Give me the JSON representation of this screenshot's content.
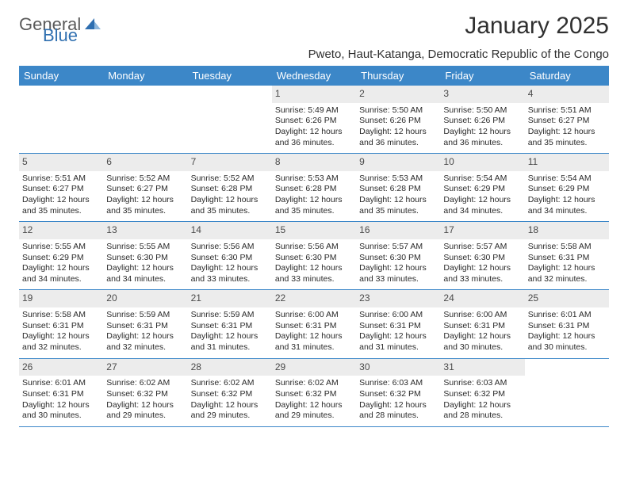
{
  "brand": {
    "part1": "General",
    "part2": "Blue"
  },
  "title": "January 2025",
  "subtitle": "Pweto, Haut-Katanga, Democratic Republic of the Congo",
  "colors": {
    "header_bg": "#3c87c8",
    "header_fg": "#ffffff",
    "daynum_bg": "#ececec",
    "rule": "#3c87c8",
    "logo_gray": "#5a5a5a",
    "logo_blue": "#2f6fb0"
  },
  "dow": [
    "Sunday",
    "Monday",
    "Tuesday",
    "Wednesday",
    "Thursday",
    "Friday",
    "Saturday"
  ],
  "weeks": [
    [
      null,
      null,
      null,
      {
        "n": "1",
        "sr": "5:49 AM",
        "ss": "6:26 PM",
        "dl": "12 hours and 36 minutes."
      },
      {
        "n": "2",
        "sr": "5:50 AM",
        "ss": "6:26 PM",
        "dl": "12 hours and 36 minutes."
      },
      {
        "n": "3",
        "sr": "5:50 AM",
        "ss": "6:26 PM",
        "dl": "12 hours and 36 minutes."
      },
      {
        "n": "4",
        "sr": "5:51 AM",
        "ss": "6:27 PM",
        "dl": "12 hours and 35 minutes."
      }
    ],
    [
      {
        "n": "5",
        "sr": "5:51 AM",
        "ss": "6:27 PM",
        "dl": "12 hours and 35 minutes."
      },
      {
        "n": "6",
        "sr": "5:52 AM",
        "ss": "6:27 PM",
        "dl": "12 hours and 35 minutes."
      },
      {
        "n": "7",
        "sr": "5:52 AM",
        "ss": "6:28 PM",
        "dl": "12 hours and 35 minutes."
      },
      {
        "n": "8",
        "sr": "5:53 AM",
        "ss": "6:28 PM",
        "dl": "12 hours and 35 minutes."
      },
      {
        "n": "9",
        "sr": "5:53 AM",
        "ss": "6:28 PM",
        "dl": "12 hours and 35 minutes."
      },
      {
        "n": "10",
        "sr": "5:54 AM",
        "ss": "6:29 PM",
        "dl": "12 hours and 34 minutes."
      },
      {
        "n": "11",
        "sr": "5:54 AM",
        "ss": "6:29 PM",
        "dl": "12 hours and 34 minutes."
      }
    ],
    [
      {
        "n": "12",
        "sr": "5:55 AM",
        "ss": "6:29 PM",
        "dl": "12 hours and 34 minutes."
      },
      {
        "n": "13",
        "sr": "5:55 AM",
        "ss": "6:30 PM",
        "dl": "12 hours and 34 minutes."
      },
      {
        "n": "14",
        "sr": "5:56 AM",
        "ss": "6:30 PM",
        "dl": "12 hours and 33 minutes."
      },
      {
        "n": "15",
        "sr": "5:56 AM",
        "ss": "6:30 PM",
        "dl": "12 hours and 33 minutes."
      },
      {
        "n": "16",
        "sr": "5:57 AM",
        "ss": "6:30 PM",
        "dl": "12 hours and 33 minutes."
      },
      {
        "n": "17",
        "sr": "5:57 AM",
        "ss": "6:30 PM",
        "dl": "12 hours and 33 minutes."
      },
      {
        "n": "18",
        "sr": "5:58 AM",
        "ss": "6:31 PM",
        "dl": "12 hours and 32 minutes."
      }
    ],
    [
      {
        "n": "19",
        "sr": "5:58 AM",
        "ss": "6:31 PM",
        "dl": "12 hours and 32 minutes."
      },
      {
        "n": "20",
        "sr": "5:59 AM",
        "ss": "6:31 PM",
        "dl": "12 hours and 32 minutes."
      },
      {
        "n": "21",
        "sr": "5:59 AM",
        "ss": "6:31 PM",
        "dl": "12 hours and 31 minutes."
      },
      {
        "n": "22",
        "sr": "6:00 AM",
        "ss": "6:31 PM",
        "dl": "12 hours and 31 minutes."
      },
      {
        "n": "23",
        "sr": "6:00 AM",
        "ss": "6:31 PM",
        "dl": "12 hours and 31 minutes."
      },
      {
        "n": "24",
        "sr": "6:00 AM",
        "ss": "6:31 PM",
        "dl": "12 hours and 30 minutes."
      },
      {
        "n": "25",
        "sr": "6:01 AM",
        "ss": "6:31 PM",
        "dl": "12 hours and 30 minutes."
      }
    ],
    [
      {
        "n": "26",
        "sr": "6:01 AM",
        "ss": "6:31 PM",
        "dl": "12 hours and 30 minutes."
      },
      {
        "n": "27",
        "sr": "6:02 AM",
        "ss": "6:32 PM",
        "dl": "12 hours and 29 minutes."
      },
      {
        "n": "28",
        "sr": "6:02 AM",
        "ss": "6:32 PM",
        "dl": "12 hours and 29 minutes."
      },
      {
        "n": "29",
        "sr": "6:02 AM",
        "ss": "6:32 PM",
        "dl": "12 hours and 29 minutes."
      },
      {
        "n": "30",
        "sr": "6:03 AM",
        "ss": "6:32 PM",
        "dl": "12 hours and 28 minutes."
      },
      {
        "n": "31",
        "sr": "6:03 AM",
        "ss": "6:32 PM",
        "dl": "12 hours and 28 minutes."
      },
      null
    ]
  ],
  "labels": {
    "sunrise": "Sunrise:",
    "sunset": "Sunset:",
    "daylight": "Daylight:"
  }
}
